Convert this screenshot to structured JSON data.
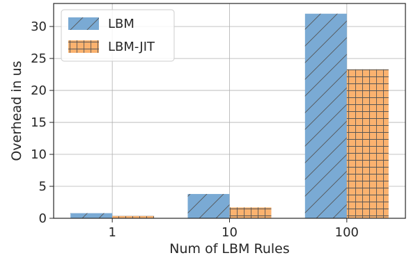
{
  "chart_data": {
    "type": "bar",
    "categories": [
      "1",
      "10",
      "100"
    ],
    "series": [
      {
        "name": "LBM",
        "values": [
          0.8,
          3.8,
          32.0
        ],
        "color": "#7aaad4",
        "hatch": "diagonal"
      },
      {
        "name": "LBM-JIT",
        "values": [
          0.35,
          1.7,
          23.3
        ],
        "color": "#fbb26f",
        "hatch": "grid"
      }
    ],
    "xlabel": "Num of LBM Rules",
    "ylabel": "Overhead in us",
    "ylim": [
      0,
      33.6
    ],
    "yticks": [
      0,
      5,
      10,
      15,
      20,
      25,
      30
    ],
    "grid": true,
    "legend": "top-left"
  }
}
